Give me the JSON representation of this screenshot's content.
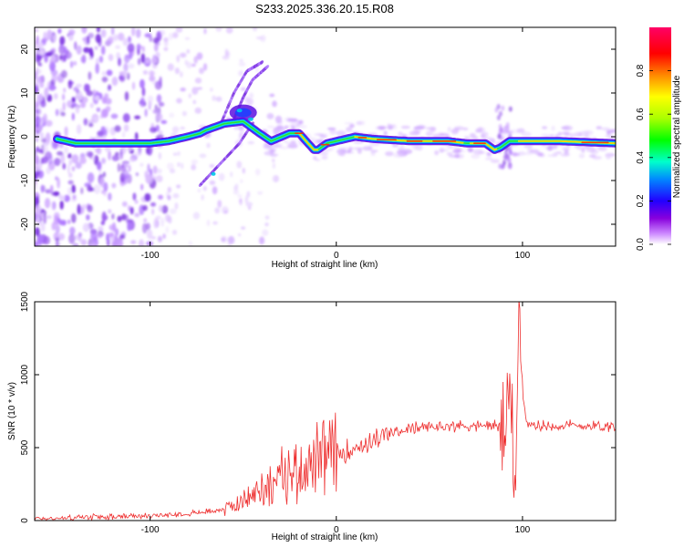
{
  "title": "S233.2025.336.20.15.R08",
  "chart_data": [
    {
      "type": "heatmap",
      "name": "spectrogram",
      "xlabel": "Height of straight line (km)",
      "ylabel": "Frequency (Hz)",
      "xlim": [
        -162,
        150
      ],
      "ylim": [
        -25,
        25
      ],
      "xticks": [
        -100,
        0,
        100
      ],
      "yticks": [
        -20,
        -10,
        0,
        10,
        20
      ],
      "colorbar": {
        "label": "Normalized spectral amplitude",
        "range": [
          0,
          1
        ],
        "ticks": [
          "0.0",
          "0.2",
          "0.4",
          "0.6",
          "0.8"
        ],
        "colors": [
          "#ffffff",
          "#cc88ff",
          "#8800dd",
          "#2200ff",
          "#0088ff",
          "#00ffcc",
          "#00ff00",
          "#aaff00",
          "#ffff00",
          "#ff8800",
          "#ff0000",
          "#ff0066"
        ]
      },
      "ridge": {
        "x": [
          -150,
          -140,
          -115,
          -100,
          -90,
          -80,
          -73,
          -70,
          -60,
          -50,
          -42,
          -35,
          -25,
          -20,
          -12,
          -10,
          -5,
          0,
          10,
          20,
          40,
          60,
          70,
          80,
          85,
          88,
          93,
          100,
          120,
          150
        ],
        "y": [
          -0.5,
          -1.5,
          -1.5,
          -1.5,
          -1.0,
          0.0,
          0.8,
          1.5,
          3.0,
          3.5,
          1.0,
          -1.0,
          0.8,
          0.8,
          -3.0,
          -3.0,
          -1.5,
          -1.0,
          0.0,
          -0.5,
          -1.0,
          -1.0,
          -1.5,
          -1.5,
          -3.0,
          -2.5,
          -1.0,
          -1.0,
          -1.0,
          -1.5
        ]
      },
      "branches": [
        {
          "x": [
            -73,
            -62,
            -52,
            -45
          ],
          "y": [
            -11,
            -6,
            -1.5,
            3
          ]
        },
        {
          "x": [
            -62,
            -55,
            -48,
            -40
          ],
          "y": [
            3,
            10,
            15,
            17
          ]
        },
        {
          "x": [
            -55,
            -50,
            -45,
            -37
          ],
          "y": [
            4,
            9,
            13,
            16
          ]
        }
      ]
    },
    {
      "type": "line",
      "name": "snr",
      "xlabel": "Height of straight line (km)",
      "ylabel": "SNR (10 * v/v)",
      "xlim": [
        -162,
        150
      ],
      "ylim": [
        0,
        1500
      ],
      "xticks": [
        -100,
        0,
        100
      ],
      "yticks": [
        0,
        500,
        1000,
        1500
      ],
      "color": "#ee3030",
      "series": [
        {
          "name": "SNR",
          "x": [
            -162,
            -140,
            -120,
            -100,
            -90,
            -80,
            -70,
            -60,
            -50,
            -40,
            -30,
            -20,
            -10,
            0,
            10,
            20,
            30,
            40,
            50,
            60,
            70,
            80,
            85,
            90,
            94,
            96,
            98,
            100,
            102,
            110,
            120,
            130,
            140,
            150
          ],
          "y": [
            10,
            20,
            25,
            30,
            40,
            50,
            60,
            80,
            130,
            220,
            300,
            360,
            400,
            450,
            500,
            550,
            600,
            630,
            640,
            650,
            650,
            650,
            650,
            640,
            800,
            200,
            1500,
            900,
            650,
            650,
            650,
            650,
            650,
            650
          ]
        }
      ]
    }
  ]
}
